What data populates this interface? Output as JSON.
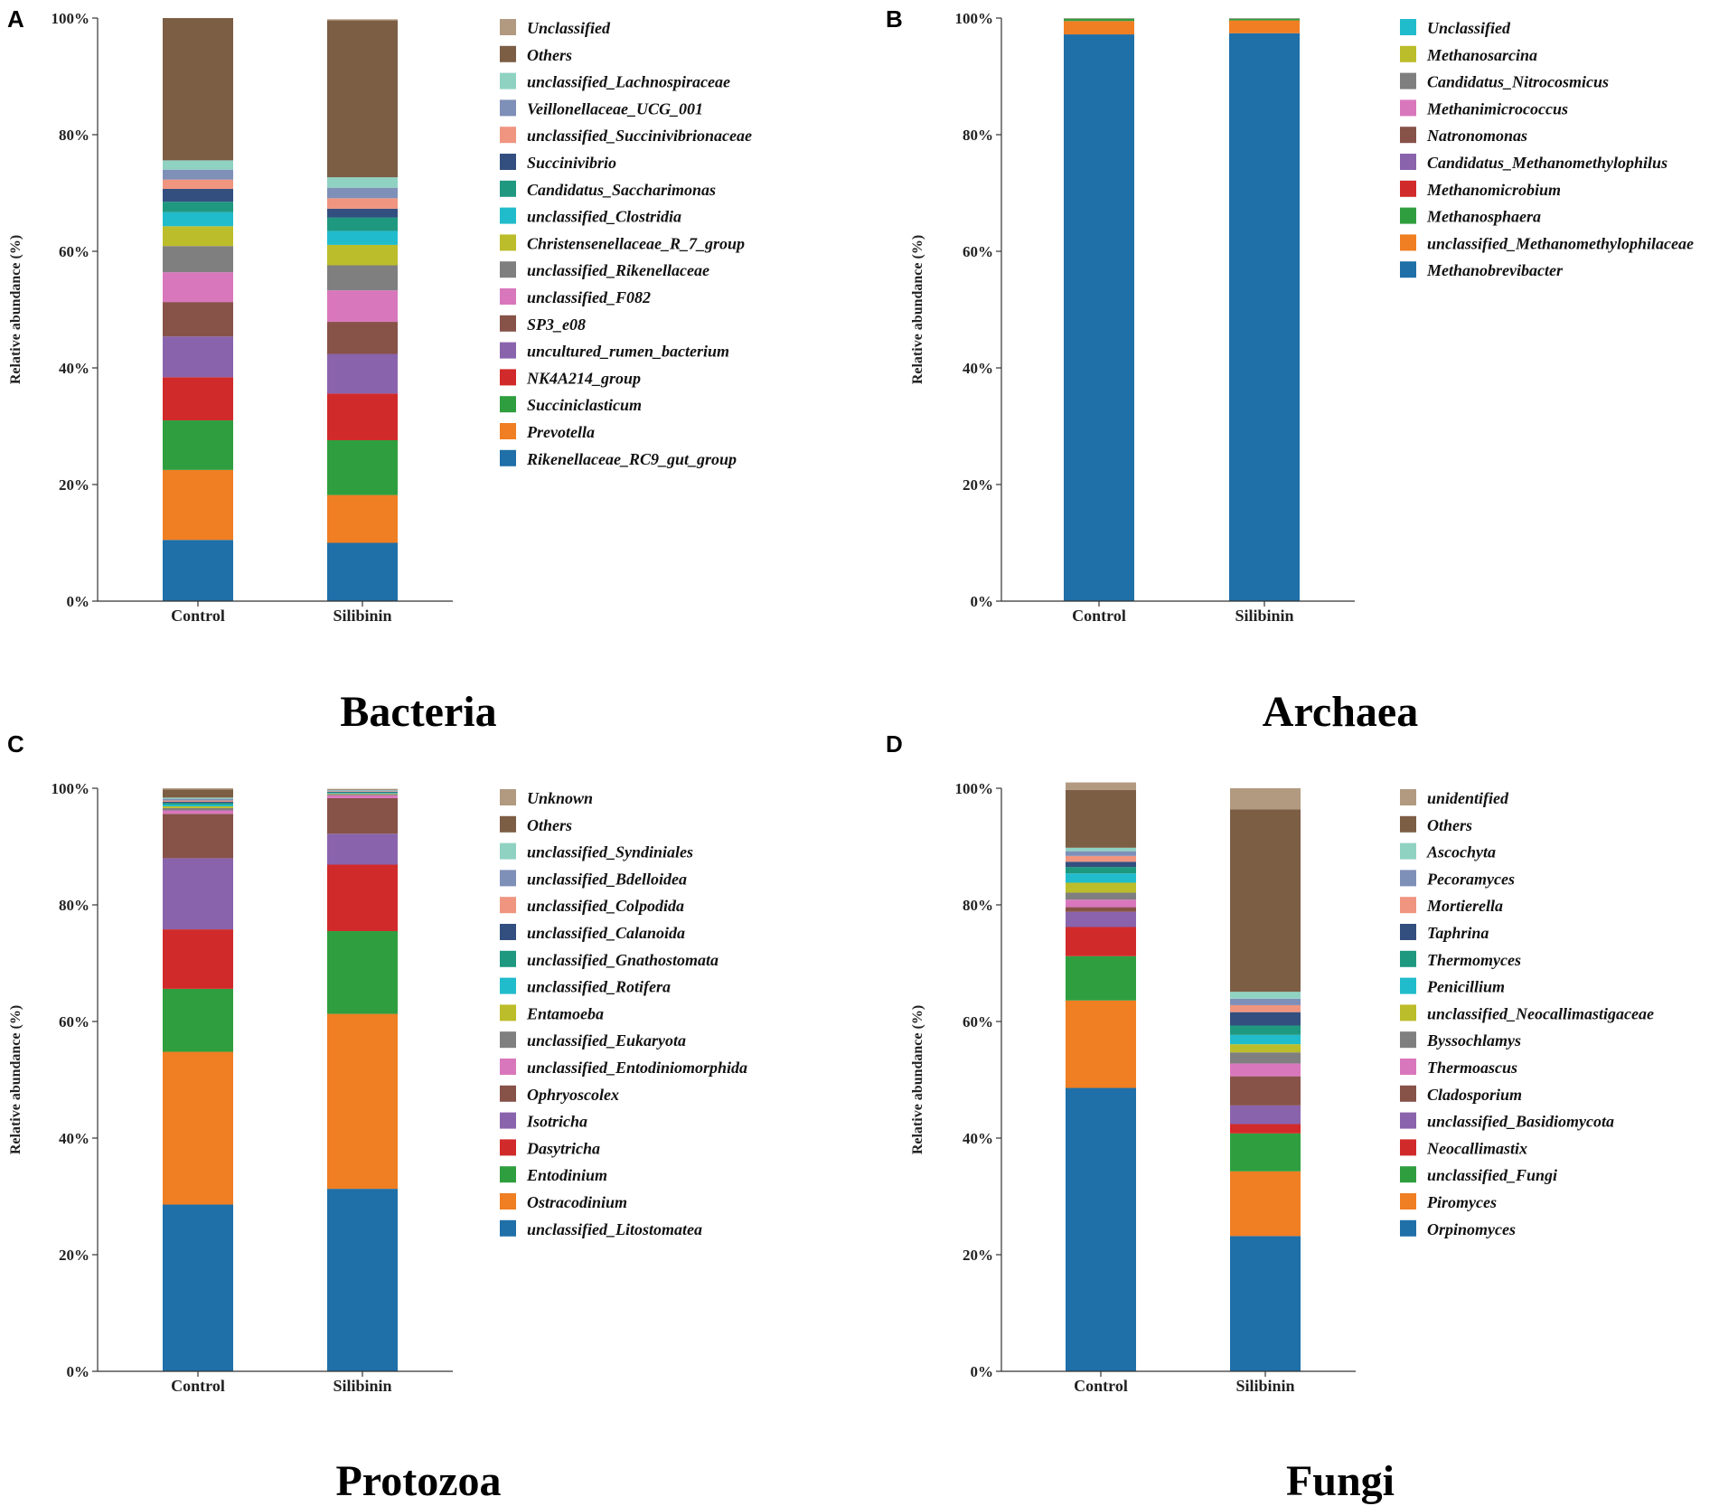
{
  "chart_data": [
    {
      "panel": "A",
      "title": "Bacteria",
      "type": "bar",
      "stacked": true,
      "ylabel": "Relative abundance (%)",
      "ylim": [
        0,
        100
      ],
      "yticks": [
        "0%",
        "20%",
        "40%",
        "60%",
        "80%",
        "100%"
      ],
      "categories": [
        "Control",
        "Silibinin"
      ],
      "series": [
        {
          "name": "Rikenellaceae_RC9_gut_group",
          "color": "#1f6fa8",
          "values": [
            10.5,
            10.0
          ]
        },
        {
          "name": "Prevotella",
          "color": "#f07e22",
          "values": [
            12.0,
            8.2
          ]
        },
        {
          "name": "Succiniclasticum",
          "color": "#2f9e3f",
          "values": [
            8.5,
            9.4
          ]
        },
        {
          "name": "NK4A214_group",
          "color": "#d12a2a",
          "values": [
            7.4,
            8.0
          ]
        },
        {
          "name": "uncultured_rumen_bacterium",
          "color": "#8a63ad",
          "values": [
            7.0,
            6.8
          ]
        },
        {
          "name": "SP3_e08",
          "color": "#875248",
          "values": [
            5.9,
            5.5
          ]
        },
        {
          "name": "unclassified_F082",
          "color": "#d977bd",
          "values": [
            5.1,
            5.4
          ]
        },
        {
          "name": "unclassified_Rikenellaceae",
          "color": "#7f7f7f",
          "values": [
            4.5,
            4.3
          ]
        },
        {
          "name": "Christensenellaceae_R_7_group",
          "color": "#bcbd2a",
          "values": [
            3.4,
            3.5
          ]
        },
        {
          "name": "unclassified_Clostridia",
          "color": "#21bccc",
          "values": [
            2.4,
            2.4
          ]
        },
        {
          "name": "Candidatus_Saccharimonas",
          "color": "#1f9880",
          "values": [
            1.8,
            2.3
          ]
        },
        {
          "name": "Succinivibrio",
          "color": "#334f7f",
          "values": [
            2.2,
            1.5
          ]
        },
        {
          "name": "unclassified_Succinivibrionaceae",
          "color": "#ef9580",
          "values": [
            1.6,
            1.8
          ]
        },
        {
          "name": "Veillonellaceae_UCG_001",
          "color": "#7e8fb8",
          "values": [
            1.7,
            1.8
          ]
        },
        {
          "name": "unclassified_Lachnospiraceae",
          "color": "#8fd2c2",
          "values": [
            1.6,
            1.8
          ]
        },
        {
          "name": "Others",
          "color": "#7c5e45",
          "values": [
            24.4,
            26.9
          ]
        },
        {
          "name": "Unclassified",
          "color": "#b19a80",
          "values": [
            0.0,
            0.2
          ]
        }
      ]
    },
    {
      "panel": "B",
      "title": "Archaea",
      "type": "bar",
      "stacked": true,
      "ylabel": "Relative abundance (%)",
      "ylim": [
        0,
        100
      ],
      "yticks": [
        "0%",
        "20%",
        "40%",
        "60%",
        "80%",
        "100%"
      ],
      "categories": [
        "Control",
        "Silibinin"
      ],
      "series": [
        {
          "name": "Methanobrevibacter",
          "color": "#1f6fa8",
          "values": [
            97.2,
            97.4
          ]
        },
        {
          "name": "unclassified_Methanomethylophilaceae",
          "color": "#f07e22",
          "values": [
            2.3,
            2.2
          ]
        },
        {
          "name": "Methanosphaera",
          "color": "#2f9e3f",
          "values": [
            0.4,
            0.3
          ]
        },
        {
          "name": "Methanomicrobium",
          "color": "#d12a2a",
          "values": [
            0.02,
            0.02
          ]
        },
        {
          "name": "Candidatus_Methanomethylophilus",
          "color": "#8a63ad",
          "values": [
            0.02,
            0.02
          ]
        },
        {
          "name": "Natronomonas",
          "color": "#875248",
          "values": [
            0.01,
            0.01
          ]
        },
        {
          "name": "Methanimicrococcus",
          "color": "#d977bd",
          "values": [
            0.01,
            0.01
          ]
        },
        {
          "name": "Candidatus_Nitrocosmicus",
          "color": "#7f7f7f",
          "values": [
            0.01,
            0.01
          ]
        },
        {
          "name": "Methanosarcina",
          "color": "#bcbd2a",
          "values": [
            0.01,
            0.01
          ]
        },
        {
          "name": "Unclassified",
          "color": "#21bccc",
          "values": [
            0.01,
            0.01
          ]
        }
      ]
    },
    {
      "panel": "C",
      "title": "Protozoa",
      "type": "bar",
      "stacked": true,
      "ylabel": "Relative abundance (%)",
      "ylim": [
        0,
        100
      ],
      "yticks": [
        "0%",
        "20%",
        "40%",
        "60%",
        "80%",
        "100%"
      ],
      "categories": [
        "Control",
        "Silibinin"
      ],
      "series": [
        {
          "name": "unclassified_Litostomatea",
          "color": "#1f6fa8",
          "values": [
            28.6,
            31.3
          ]
        },
        {
          "name": "Ostracodinium",
          "color": "#f07e22",
          "values": [
            26.2,
            30.0
          ]
        },
        {
          "name": "Entodinium",
          "color": "#2f9e3f",
          "values": [
            10.8,
            14.2
          ]
        },
        {
          "name": "Dasytricha",
          "color": "#d12a2a",
          "values": [
            10.2,
            11.4
          ]
        },
        {
          "name": "Isotricha",
          "color": "#8a63ad",
          "values": [
            12.2,
            5.3
          ]
        },
        {
          "name": "Ophryoscolex",
          "color": "#875248",
          "values": [
            7.6,
            6.1
          ]
        },
        {
          "name": "unclassified_Entodiniomorphida",
          "color": "#d977bd",
          "values": [
            0.6,
            0.5
          ]
        },
        {
          "name": "unclassified_Eukaryota",
          "color": "#7f7f7f",
          "values": [
            0.4,
            0.2
          ]
        },
        {
          "name": "Entamoeba",
          "color": "#bcbd2a",
          "values": [
            0.3,
            0.1
          ]
        },
        {
          "name": "unclassified_Rotifera",
          "color": "#21bccc",
          "values": [
            0.3,
            0.1
          ]
        },
        {
          "name": "unclassified_Gnathostomata",
          "color": "#1f9880",
          "values": [
            0.3,
            0.1
          ]
        },
        {
          "name": "unclassified_Calanoida",
          "color": "#334f7f",
          "values": [
            0.2,
            0.1
          ]
        },
        {
          "name": "unclassified_Colpodida",
          "color": "#ef9580",
          "values": [
            0.2,
            0.1
          ]
        },
        {
          "name": "unclassified_Bdelloidea",
          "color": "#7e8fb8",
          "values": [
            0.3,
            0.1
          ]
        },
        {
          "name": "unclassified_Syndiniales",
          "color": "#8fd2c2",
          "values": [
            0.2,
            0.1
          ]
        },
        {
          "name": "Others",
          "color": "#7c5e45",
          "values": [
            1.4,
            0.1
          ]
        },
        {
          "name": "Unknown",
          "color": "#b19a80",
          "values": [
            0.2,
            0.1
          ]
        }
      ]
    },
    {
      "panel": "D",
      "title": "Fungi",
      "type": "bar",
      "stacked": true,
      "ylabel": "Relative abundance (%)",
      "ylim": [
        0,
        100
      ],
      "yticks": [
        "0%",
        "20%",
        "40%",
        "60%",
        "80%",
        "100%"
      ],
      "categories": [
        "Control",
        "Silibinin"
      ],
      "series": [
        {
          "name": "Orpinomyces",
          "color": "#1f6fa8",
          "values": [
            48.6,
            23.2
          ]
        },
        {
          "name": "Piromyces",
          "color": "#f07e22",
          "values": [
            15.0,
            11.1
          ]
        },
        {
          "name": "unclassified_Fungi",
          "color": "#2f9e3f",
          "values": [
            7.6,
            6.5
          ]
        },
        {
          "name": "Neocallimastix",
          "color": "#d12a2a",
          "values": [
            5.0,
            1.6
          ]
        },
        {
          "name": "unclassified_Basidiomycota",
          "color": "#8a63ad",
          "values": [
            2.6,
            3.2
          ]
        },
        {
          "name": "Cladosporium",
          "color": "#875248",
          "values": [
            0.8,
            5.0
          ]
        },
        {
          "name": "Thermoascus",
          "color": "#d977bd",
          "values": [
            1.3,
            2.2
          ]
        },
        {
          "name": "Byssochlamys",
          "color": "#7f7f7f",
          "values": [
            1.2,
            1.9
          ]
        },
        {
          "name": "unclassified_Neocallimastigaceae",
          "color": "#bcbd2a",
          "values": [
            1.7,
            1.4
          ]
        },
        {
          "name": "Penicillium",
          "color": "#21bccc",
          "values": [
            1.6,
            1.6
          ]
        },
        {
          "name": "Thermomyces",
          "color": "#1f9880",
          "values": [
            1.1,
            1.6
          ]
        },
        {
          "name": "Taphrina",
          "color": "#334f7f",
          "values": [
            0.9,
            2.3
          ]
        },
        {
          "name": "Mortierella",
          "color": "#ef9580",
          "values": [
            1.0,
            1.2
          ]
        },
        {
          "name": "Pecoramyces",
          "color": "#7e8fb8",
          "values": [
            0.8,
            1.1
          ]
        },
        {
          "name": "Ascochyta",
          "color": "#8fd2c2",
          "values": [
            0.6,
            1.2
          ]
        },
        {
          "name": "Others",
          "color": "#7c5e45",
          "values": [
            9.9,
            31.3
          ]
        },
        {
          "name": "unidentified",
          "color": "#b19a80",
          "values": [
            1.3,
            3.6
          ]
        }
      ]
    }
  ]
}
